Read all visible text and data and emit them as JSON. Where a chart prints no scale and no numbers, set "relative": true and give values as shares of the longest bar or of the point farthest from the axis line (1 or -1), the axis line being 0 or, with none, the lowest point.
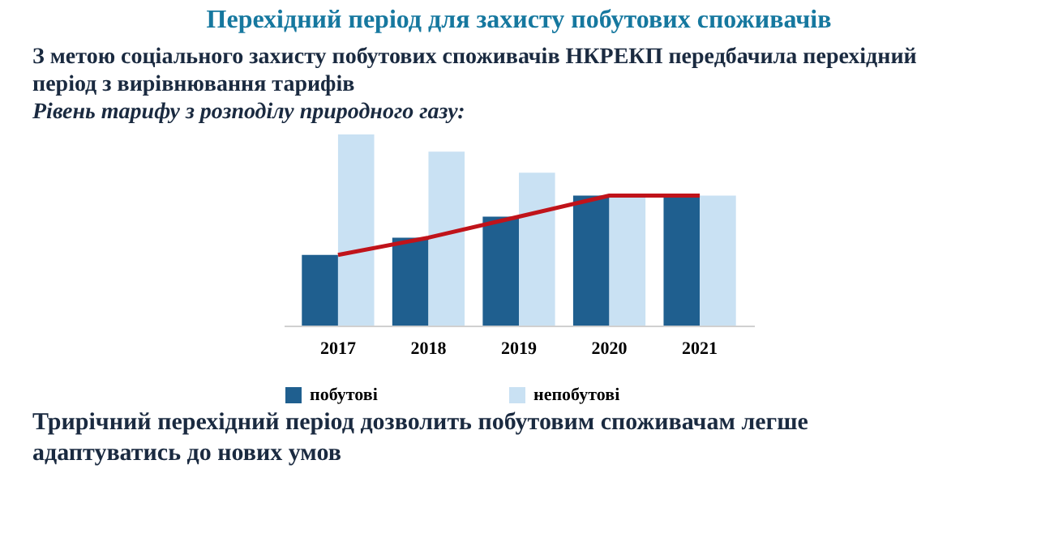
{
  "chart_data": {
    "type": "bar",
    "title": "Перехідний період для захисту побутових споживачів",
    "subtitle": "З метою соціального захисту побутових споживачів НКРЕКП передбачила перехідний період з вирівнювання тарифів",
    "annotations": [
      "Рівень тарифу з розподілу природного газу:",
      "Трирічний перехідний період дозволить побутовим споживачам легше адаптуватись до нових умов"
    ],
    "categories": [
      "2017",
      "2018",
      "2019",
      "2020",
      "2021"
    ],
    "relative": true,
    "legend": "bottom",
    "grid": false,
    "series": [
      {
        "name": "побутові",
        "color": "#1f5f8f",
        "values": [
          0.37,
          0.46,
          0.57,
          0.68,
          0.68
        ]
      },
      {
        "name": "непобутові",
        "color": "#c9e1f3",
        "values": [
          1,
          0.91,
          0.8,
          0.68,
          0.68
        ]
      },
      {
        "type": "line",
        "color": "#c0131a",
        "values": [
          0.37,
          0.46,
          0.57,
          0.68,
          0.68
        ]
      }
    ]
  }
}
